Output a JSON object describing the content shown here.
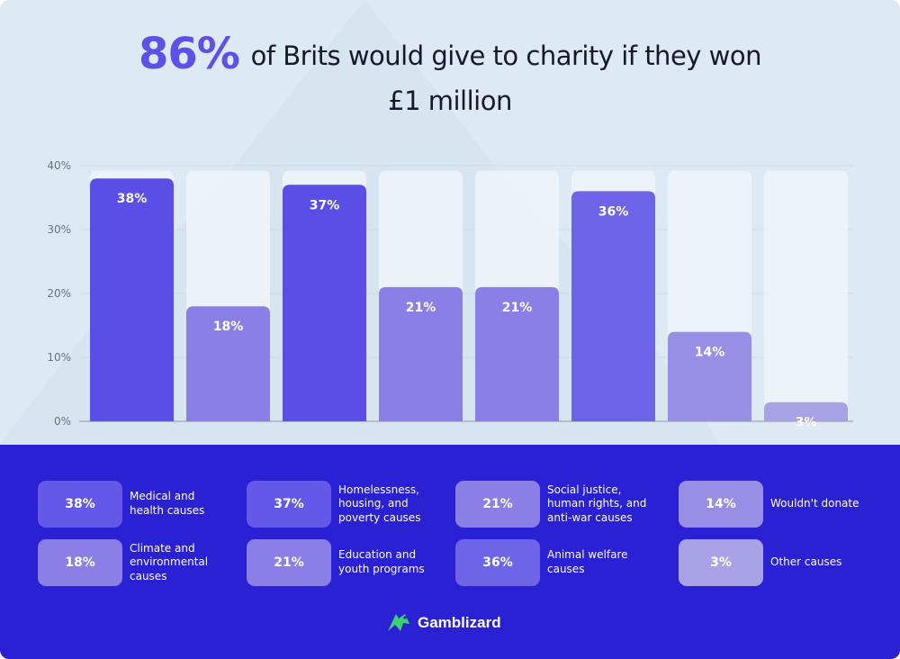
{
  "title": {
    "highlight": "86%",
    "rest": "of Brits would give to charity if they won £1 million"
  },
  "colors": {
    "top_background": "#dde9f3",
    "bottom_background": "#2a20d4",
    "highlight": "#5e50e8",
    "bar_track": "#eef4f9"
  },
  "chart_data": {
    "type": "bar",
    "categories": [
      "Medical and health causes",
      "Climate and environmental causes",
      "Homelessness, housing, and poverty causes",
      "Education and youth programs",
      "Social justice, human rights, and anti-war causes",
      "Animal welfare causes",
      "Wouldn't donate",
      "Other causes"
    ],
    "values": [
      38,
      18,
      37,
      21,
      21,
      36,
      14,
      3
    ],
    "value_labels": [
      "38%",
      "18%",
      "37%",
      "21%",
      "21%",
      "36%",
      "14%",
      "3%"
    ],
    "bar_colors": [
      "#5a4ee6",
      "#8a7fe6",
      "#5a4ee6",
      "#8a7fe6",
      "#8a7fe6",
      "#6d64e8",
      "#978fe6",
      "#a8a3e6"
    ],
    "ylim": [
      0,
      40
    ],
    "yticks": [
      0,
      10,
      20,
      30,
      40
    ],
    "ytick_labels": [
      "0%",
      "10%",
      "20%",
      "30%",
      "40%"
    ],
    "grid": true,
    "legend_placement": "bottom"
  },
  "legend": [
    {
      "value": "38%",
      "label": "Medical and health causes",
      "lines": [
        "Medical and",
        "health causes"
      ],
      "color": "#6458e8"
    },
    {
      "value": "37%",
      "label": "Homelessness, housing, and poverty causes",
      "lines": [
        "Homelessness,",
        "housing, and",
        "poverty causes"
      ],
      "color": "#6458e8"
    },
    {
      "value": "21%",
      "label": "Social justice, human rights, and anti-war causes",
      "lines": [
        "Social justice,",
        "human rights, and",
        "anti-war causes"
      ],
      "color": "#8a7fe6"
    },
    {
      "value": "14%",
      "label": "Wouldn't donate",
      "lines": [
        "Wouldn't donate"
      ],
      "color": "#978fe6"
    },
    {
      "value": "18%",
      "label": "Climate and environmental causes",
      "lines": [
        "Climate and",
        "environmental",
        "causes"
      ],
      "color": "#8a7fe6"
    },
    {
      "value": "21%",
      "label": "Education and youth programs",
      "lines": [
        "Education and",
        "youth programs"
      ],
      "color": "#8a7fe6"
    },
    {
      "value": "36%",
      "label": "Animal welfare causes",
      "lines": [
        "Animal welfare",
        "causes"
      ],
      "color": "#6d64e8"
    },
    {
      "value": "3%",
      "label": "Other causes",
      "lines": [
        "Other causes"
      ],
      "color": "#a8a3e6"
    }
  ],
  "brand": {
    "name": "Gamblizard",
    "icon": "lizard-logo-icon",
    "icon_color": "#3ccf6e"
  }
}
